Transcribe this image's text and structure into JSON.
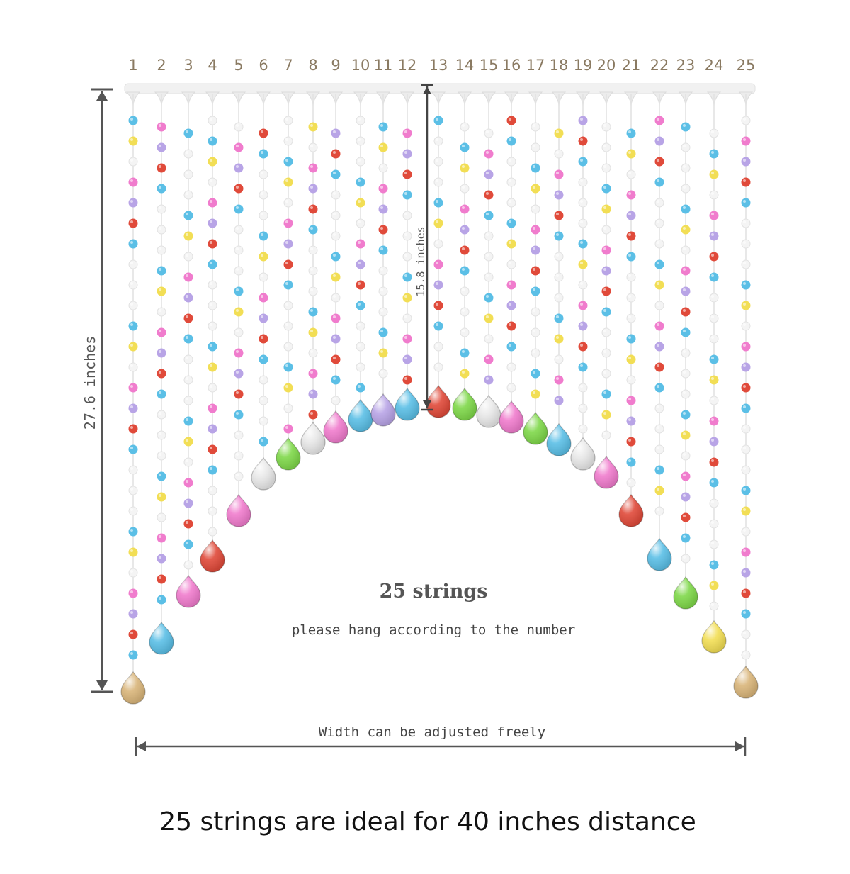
{
  "string_numbers": [
    "1",
    "2",
    "3",
    "4",
    "5",
    "6",
    "7",
    "8",
    "9",
    "10",
    "11",
    "12",
    "13",
    "14",
    "15",
    "16",
    "17",
    "18",
    "19",
    "20",
    "21",
    "22",
    "23",
    "24",
    "25"
  ],
  "height_label": "27.6 inches",
  "center_label": "15.8 inches",
  "title": "25 strings",
  "note": "please hang according to the number",
  "width_label": "Width can be adjusted freely",
  "caption": "25 strings are ideal for 40 inches distance",
  "palette": {
    "blue": "#5bbfe6",
    "yellow": "#f2de55",
    "pink": "#f07ccd",
    "lavender": "#b8a4e6",
    "red": "#e04a3a",
    "green": "#7fd84a",
    "clear": "#e8e8e8",
    "amber": "#d9b57a",
    "white": "#f4f4f4"
  },
  "teardrop_colors": [
    "amber",
    "blue",
    "pink",
    "red",
    "pink",
    "clear",
    "green",
    "clear",
    "pink",
    "blue",
    "lavender",
    "blue",
    "red",
    "green",
    "clear",
    "pink",
    "green",
    "blue",
    "clear",
    "pink",
    "red",
    "blue",
    "green",
    "yellow",
    "amber"
  ]
}
